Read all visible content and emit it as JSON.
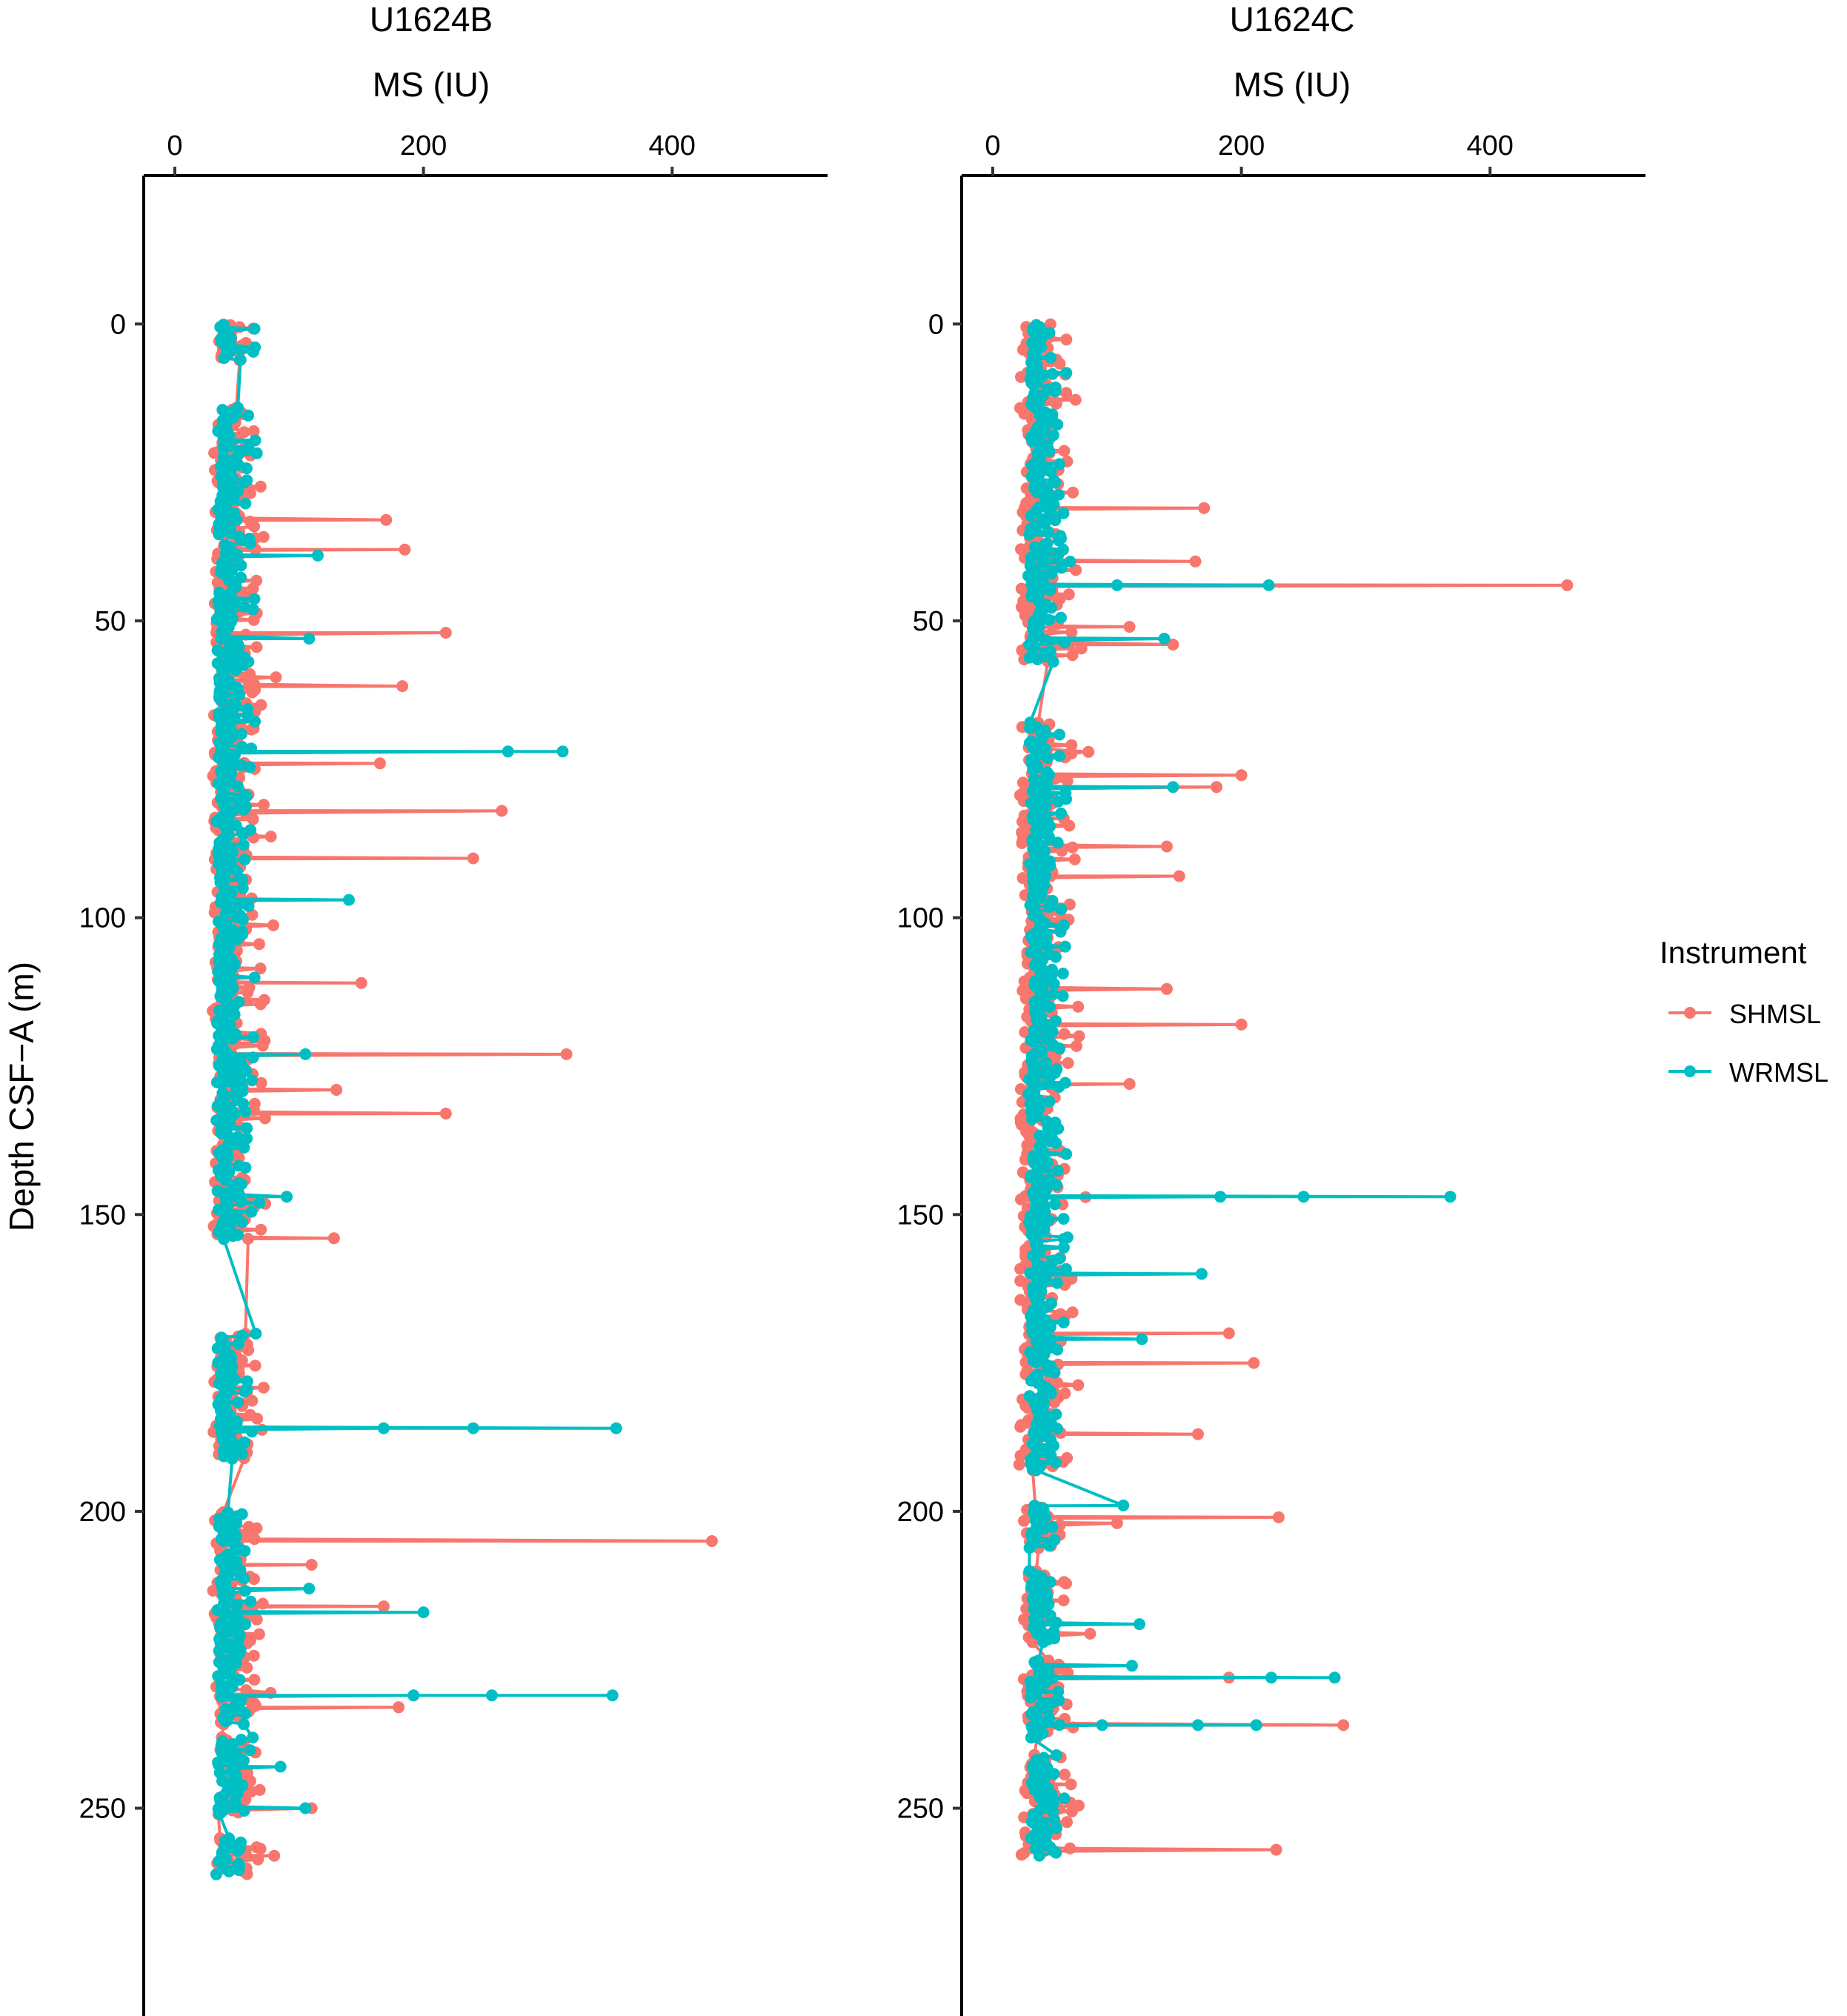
{
  "chart_data": {
    "type": "line",
    "description": "Magnetic susceptibility vs depth, two holes, two instruments (lines with point markers)",
    "ylabel": "Depth CSF−A (m)",
    "y_reversed": true,
    "ylim": [
      -25,
      285
    ],
    "yticks": [
      0,
      50,
      100,
      150,
      200,
      250
    ],
    "legend": {
      "title": "Instrument",
      "position": "right",
      "items": [
        {
          "name": "SHMSL",
          "color": "#F8766D"
        },
        {
          "name": "WRMSL",
          "color": "#00BFC4"
        }
      ]
    },
    "panels": [
      {
        "title": "U1624B",
        "xlabel": "MS (IU)",
        "xlim": [
          -25,
          525
        ],
        "xticks": [
          0,
          200,
          400
        ],
        "cores": [
          [
            0,
            6
          ],
          [
            14,
            42
          ],
          [
            42,
            62
          ],
          [
            62,
            90
          ],
          [
            90,
            120
          ],
          [
            120,
            154
          ],
          [
            170,
            191
          ],
          [
            200,
            236
          ],
          [
            238,
            251
          ],
          [
            255,
            261
          ]
        ],
        "baseline": {
          "SHMSL": [
            15,
            75
          ],
          "WRMSL": [
            22,
            65
          ]
        },
        "series": [
          {
            "name": "SHMSL",
            "spikes": [
              [
                170,
                33
              ],
              [
                185,
                38
              ],
              [
                218,
                52
              ],
              [
                183,
                61
              ],
              [
                165,
                74
              ],
              [
                263,
                82
              ],
              [
                240,
                90
              ],
              [
                315,
                123
              ],
              [
                218,
                133
              ],
              [
                130,
                129
              ],
              [
                150,
                111
              ],
              [
                128,
                154
              ],
              [
                432,
                205
              ],
              [
                110,
                209
              ],
              [
                168,
                216
              ],
              [
                180,
                233
              ],
              [
                110,
                250
              ],
              [
                80,
                258
              ]
            ]
          },
          {
            "name": "WRMSL",
            "spikes": [
              [
                115,
                39
              ],
              [
                108,
                53
              ],
              [
                312,
                72
              ],
              [
                268,
                72
              ],
              [
                140,
                97
              ],
              [
                105,
                123
              ],
              [
                90,
                147
              ],
              [
                355,
                186
              ],
              [
                240,
                186
              ],
              [
                168,
                186
              ],
              [
                200,
                217
              ],
              [
                108,
                213
              ],
              [
                352,
                231
              ],
              [
                255,
                231
              ],
              [
                192,
                231
              ],
              [
                105,
                250
              ],
              [
                85,
                243
              ]
            ]
          }
        ]
      },
      {
        "title": "U1624C",
        "xlabel": "MS (IU)",
        "xlim": [
          -25,
          525
        ],
        "xticks": [
          0,
          200,
          400
        ],
        "cores": [
          [
            0,
            28
          ],
          [
            28,
            57
          ],
          [
            67,
            96
          ],
          [
            96,
            125
          ],
          [
            125,
            152
          ],
          [
            152,
            172
          ],
          [
            172,
            193
          ],
          [
            199,
            206
          ],
          [
            210,
            222
          ],
          [
            225,
            238
          ],
          [
            241,
            258
          ]
        ],
        "baseline": {
          "SHMSL": [
            5,
            70
          ],
          "WRMSL": [
            18,
            60
          ]
        },
        "series": [
          {
            "name": "SHMSL",
            "spikes": [
              [
                462,
                44
              ],
              [
                170,
                31
              ],
              [
                163,
                40
              ],
              [
                110,
                51
              ],
              [
                145,
                54
              ],
              [
                200,
                76
              ],
              [
                180,
                78
              ],
              [
                140,
                88
              ],
              [
                150,
                93
              ],
              [
                200,
                118
              ],
              [
                140,
                112
              ],
              [
                110,
                128
              ],
              [
                190,
                170
              ],
              [
                210,
                175
              ],
              [
                165,
                187
              ],
              [
                230,
                201
              ],
              [
                190,
                228
              ],
              [
                282,
                236
              ],
              [
                228,
                257
              ],
              [
                100,
                202
              ]
            ]
          },
          {
            "name": "WRMSL",
            "spikes": [
              [
                222,
                44
              ],
              [
                100,
                44
              ],
              [
                138,
                53
              ],
              [
                145,
                78
              ],
              [
                368,
                147
              ],
              [
                250,
                147
              ],
              [
                183,
                147
              ],
              [
                168,
                160
              ],
              [
                120,
                171
              ],
              [
                105,
                199
              ],
              [
                118,
                219
              ],
              [
                275,
                228
              ],
              [
                224,
                228
              ],
              [
                112,
                226
              ],
              [
                212,
                236
              ],
              [
                165,
                236
              ],
              [
                88,
                236
              ]
            ]
          }
        ]
      }
    ]
  }
}
